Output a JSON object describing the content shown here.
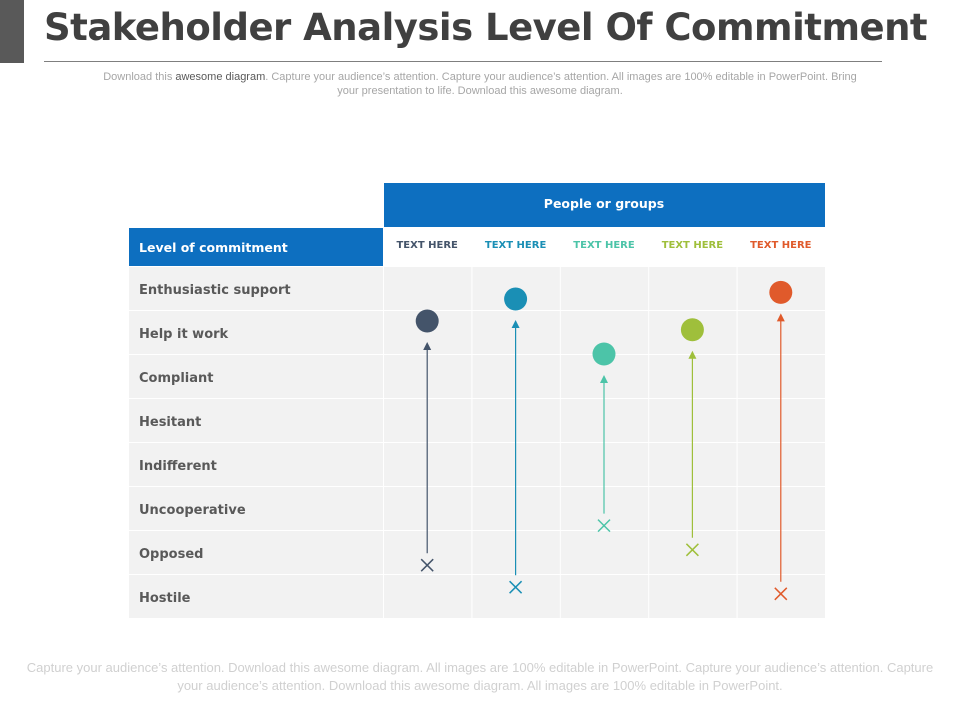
{
  "header": {
    "title": "Stakeholder Analysis Level Of Commitment",
    "subtitle_pre": "Download this ",
    "subtitle_highlight": "awesome diagram",
    "subtitle_post": ". Capture your audience’s attention. Capture your audience’s attention. All images are 100% editable in PowerPoint. Bring your presentation to life. Download this awesome diagram."
  },
  "table": {
    "group_header": "People or groups",
    "row_header": "Level of commitment",
    "levels": [
      "Enthusiastic support",
      "Help it work",
      "Compliant",
      "Hesitant",
      "Indifferent",
      "Uncooperative",
      "Opposed",
      "Hostile"
    ],
    "columns": [
      {
        "label": "TEXT HERE",
        "color": "#44546a",
        "from_level": 6.8,
        "to_level": 1.25
      },
      {
        "label": "TEXT HERE",
        "color": "#1a8fb5",
        "from_level": 7.3,
        "to_level": 0.75
      },
      {
        "label": "TEXT HERE",
        "color": "#4cc4a8",
        "from_level": 5.9,
        "to_level": 2.0
      },
      {
        "label": "TEXT HERE",
        "color": "#9fbf3b",
        "from_level": 6.45,
        "to_level": 1.45
      },
      {
        "label": "TEXT HERE",
        "color": "#e05a2b",
        "from_level": 7.45,
        "to_level": 0.6
      }
    ]
  },
  "footer": {
    "text": "Capture your audience’s attention. Download this awesome diagram. All images are 100% editable in PowerPoint. Capture your audience’s attention. Capture your audience’s attention. Download this awesome diagram. All images are 100% editable in PowerPoint."
  },
  "colors": {
    "header_blue": "#0d6fc0",
    "cell_gray": "#f2f2f2",
    "row_label": "#595959"
  }
}
